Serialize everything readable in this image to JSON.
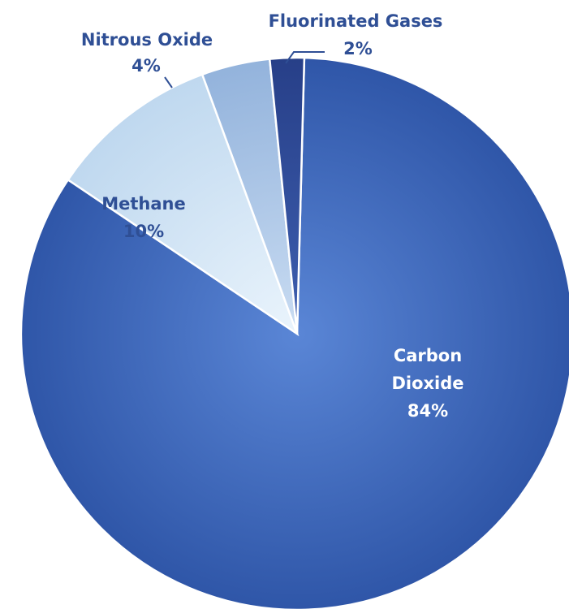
{
  "chart_data": {
    "type": "pie",
    "title": "",
    "slices": [
      {
        "name": "Carbon Dioxide",
        "label_lines": [
          "Carbon",
          "Dioxide"
        ],
        "value_label": "84%",
        "value": 84,
        "color": "#3b62b5"
      },
      {
        "name": "Methane",
        "label_lines": [
          "Methane"
        ],
        "value_label": "10%",
        "value": 10,
        "color": "#c5dcf1"
      },
      {
        "name": "Nitrous Oxide",
        "label_lines": [
          "Nitrous Oxide"
        ],
        "value_label": "4%",
        "value": 4,
        "color": "#9fbde0"
      },
      {
        "name": "Fluorinated Gases",
        "label_lines": [
          "Fluorinated Gases"
        ],
        "value_label": "2%",
        "value": 2,
        "color": "#2e4a97"
      }
    ],
    "legend": "none"
  }
}
